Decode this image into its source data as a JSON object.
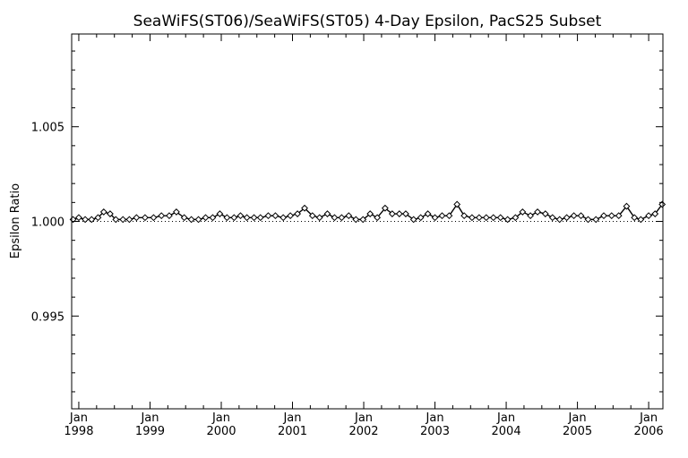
{
  "chart_data": {
    "type": "line",
    "title": "SeaWiFS(ST06)/SeaWiFS(ST05) 4-Day Epsilon, PacS25 Subset",
    "xlabel": "",
    "ylabel": "Epsilon Ratio",
    "xlim": [
      1997.9,
      2006.2
    ],
    "ylim": [
      0.9901,
      1.0099
    ],
    "reference_line": 1.0,
    "xticks": [
      {
        "month": "Jan",
        "year": "1998",
        "x": 1998.0
      },
      {
        "month": "Jan",
        "year": "1999",
        "x": 1999.0
      },
      {
        "month": "Jan",
        "year": "2000",
        "x": 2000.0
      },
      {
        "month": "Jan",
        "year": "2001",
        "x": 2001.0
      },
      {
        "month": "Jan",
        "year": "2002",
        "x": 2002.0
      },
      {
        "month": "Jan",
        "year": "2003",
        "x": 2003.0
      },
      {
        "month": "Jan",
        "year": "2004",
        "x": 2004.0
      },
      {
        "month": "Jan",
        "year": "2005",
        "x": 2005.0
      },
      {
        "month": "Jan",
        "year": "2006",
        "x": 2006.0
      }
    ],
    "yticks": [
      {
        "label": "0.995",
        "y": 0.995
      },
      {
        "label": "1.000",
        "y": 1.0
      },
      {
        "label": "1.005",
        "y": 1.005
      }
    ],
    "series": [
      {
        "x": [
          1997.92,
          1998.0,
          1998.09,
          1998.18,
          1998.27,
          1998.35,
          1998.44,
          1998.52,
          1998.62,
          1998.71,
          1998.81,
          1998.93,
          1999.05,
          1999.16,
          1999.27,
          1999.37,
          1999.48,
          1999.58,
          1999.68,
          1999.78,
          1999.88,
          1999.98,
          2000.08,
          2000.18,
          2000.27,
          2000.36,
          2000.46,
          2000.55,
          2000.66,
          2000.76,
          2000.87,
          2000.97,
          2001.07,
          2001.17,
          2001.28,
          2001.38,
          2001.49,
          2001.59,
          2001.69,
          2001.79,
          2001.89,
          2001.99,
          2002.09,
          2002.19,
          2002.3,
          2002.4,
          2002.5,
          2002.59,
          2002.7,
          2002.8,
          2002.9,
          2003.0,
          2003.1,
          2003.2,
          2003.31,
          2003.41,
          2003.52,
          2003.62,
          2003.72,
          2003.82,
          2003.92,
          2004.02,
          2004.13,
          2004.23,
          2004.34,
          2004.44,
          2004.55,
          2004.65,
          2004.75,
          2004.85,
          2004.95,
          2005.05,
          2005.15,
          2005.26,
          2005.37,
          2005.48,
          2005.58,
          2005.69,
          2005.8,
          2005.89,
          2006.0,
          2006.09,
          2006.19
        ],
        "y": [
          1.0001,
          1.0002,
          1.0001,
          1.0001,
          1.0002,
          1.0005,
          1.0004,
          1.0001,
          1.0001,
          1.0001,
          1.0002,
          1.0002,
          1.0002,
          1.0003,
          1.0003,
          1.0005,
          1.0002,
          1.0001,
          1.0001,
          1.0002,
          1.0002,
          1.0004,
          1.0002,
          1.0002,
          1.0003,
          1.0002,
          1.0002,
          1.0002,
          1.0003,
          1.0003,
          1.0002,
          1.0003,
          1.0004,
          1.0007,
          1.0003,
          1.0002,
          1.0004,
          1.0002,
          1.0002,
          1.0003,
          1.0001,
          1.0001,
          1.0004,
          1.0002,
          1.0007,
          1.0004,
          1.0004,
          1.0004,
          1.0001,
          1.0002,
          1.0004,
          1.0002,
          1.0003,
          1.0003,
          1.0009,
          1.0003,
          1.0002,
          1.0002,
          1.0002,
          1.0002,
          1.0002,
          1.0001,
          1.0002,
          1.0005,
          1.0003,
          1.0005,
          1.0004,
          1.0002,
          1.0001,
          1.0002,
          1.0003,
          1.0003,
          1.0001,
          1.0001,
          1.0003,
          1.0003,
          1.0003,
          1.0008,
          1.0002,
          1.0001,
          1.0003,
          1.0004,
          1.0009
        ]
      }
    ]
  }
}
